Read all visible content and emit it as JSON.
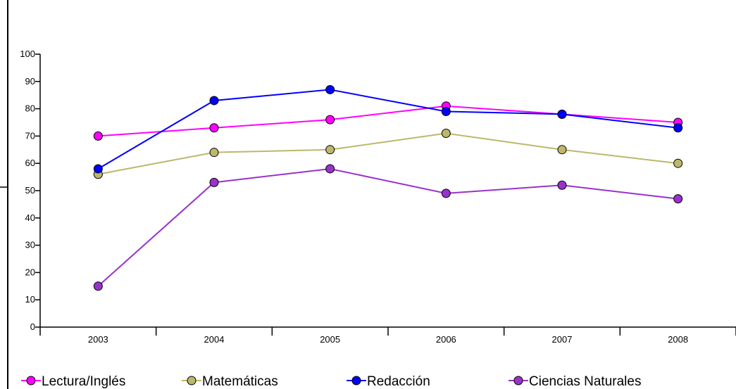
{
  "chart_data": {
    "type": "line",
    "x": [
      "2003",
      "2004",
      "2005",
      "2006",
      "2007",
      "2008"
    ],
    "ylim": [
      0,
      100
    ],
    "yticks": [
      "0",
      "10",
      "20",
      "30",
      "40",
      "50",
      "60",
      "70",
      "80",
      "90",
      "100"
    ],
    "grid": false,
    "legend_position": "bottom",
    "series": [
      {
        "name": "Lectura/Inglés",
        "color": "#ff00ff",
        "values": [
          70,
          73,
          76,
          81,
          78,
          75
        ]
      },
      {
        "name": "Matemáticas",
        "color": "#bdb76b",
        "values": [
          56,
          64,
          65,
          71,
          65,
          60
        ]
      },
      {
        "name": "Redacción",
        "color": "#0000ff",
        "values": [
          58,
          83,
          87,
          79,
          78,
          73
        ]
      },
      {
        "name": "Ciencias Naturales",
        "color": "#9932cc",
        "values": [
          15,
          53,
          58,
          49,
          52,
          47
        ]
      }
    ]
  }
}
